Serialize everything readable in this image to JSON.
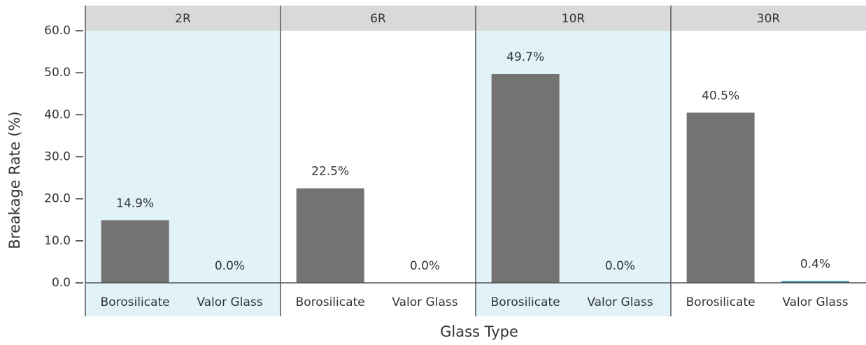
{
  "chart_data": {
    "type": "bar",
    "ylabel": "Breakage Rate (%)",
    "xlabel": "Glass Type",
    "colors": [
      "#757272",
      "#1b84bb"
    ],
    "ylim": [
      0,
      60
    ],
    "yticks": [
      {
        "value": 0,
        "label": "0.0"
      },
      {
        "value": 10,
        "label": "10.0"
      },
      {
        "value": 20,
        "label": "20.0"
      },
      {
        "value": 30,
        "label": "30.0"
      },
      {
        "value": 40,
        "label": "40.0"
      },
      {
        "value": 50,
        "label": "50.0"
      },
      {
        "value": 60,
        "label": "60.0"
      }
    ],
    "facets": [
      {
        "title": "2R",
        "shaded": true,
        "categories": [
          "Borosilicate",
          "Valor Glass"
        ],
        "values": [
          14.9,
          0.0
        ],
        "value_labels": [
          "14.9%",
          "0.0%"
        ]
      },
      {
        "title": "6R",
        "shaded": false,
        "categories": [
          "Borosilicate",
          "Valor Glass"
        ],
        "values": [
          22.5,
          0.0
        ],
        "value_labels": [
          "22.5%",
          "0.0%"
        ]
      },
      {
        "title": "10R",
        "shaded": true,
        "categories": [
          "Borosilicate",
          "Valor Glass"
        ],
        "values": [
          49.7,
          0.0
        ],
        "value_labels": [
          "49.7%",
          "0.0%"
        ]
      },
      {
        "title": "30R",
        "shaded": false,
        "categories": [
          "Borosilicate",
          "Valor Glass"
        ],
        "values": [
          40.5,
          0.4
        ],
        "value_labels": [
          "40.5%",
          "0.4%"
        ]
      }
    ]
  }
}
